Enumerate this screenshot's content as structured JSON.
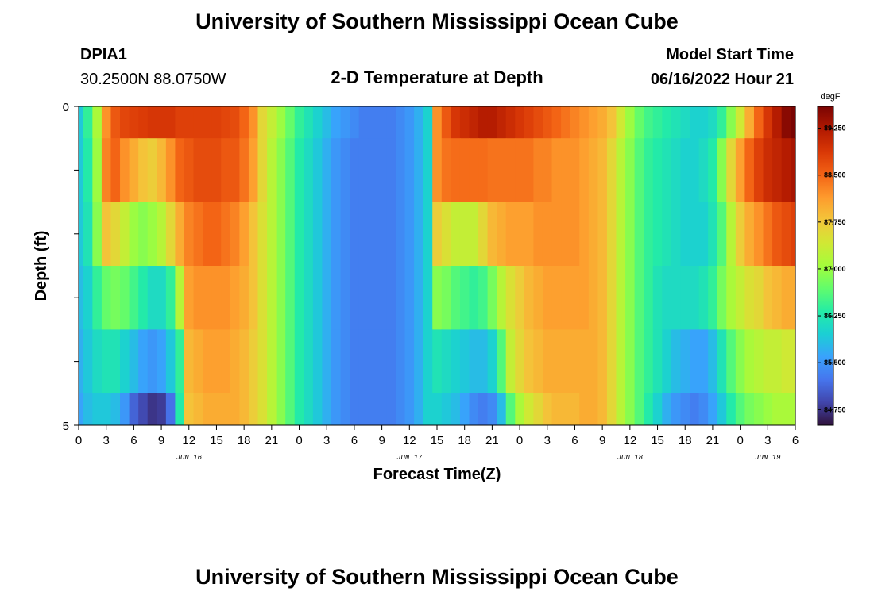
{
  "page": {
    "title": "University of Southern Mississippi Ocean Cube",
    "footer_title": "University of Southern Mississippi Ocean Cube",
    "station_id": "DPIA1",
    "coordinates": "30.2500N  88.0750W",
    "subtitle": "2-D Temperature at Depth",
    "model_start_label": "Model Start Time",
    "model_start_value": "06/16/2022 Hour 21"
  },
  "chart_data": {
    "type": "heatmap",
    "title": "2-D Temperature at Depth",
    "xlabel": "Forecast Time(Z)",
    "ylabel": "Depth (ft)",
    "x_tick_labels": [
      "0",
      "3",
      "6",
      "9",
      "12",
      "15",
      "18",
      "21",
      "0",
      "3",
      "6",
      "9",
      "12",
      "15",
      "18",
      "21",
      "0",
      "3",
      "6",
      "9",
      "12",
      "15",
      "18",
      "21",
      "0",
      "3",
      "6"
    ],
    "x_tick_hours": [
      0,
      3,
      6,
      9,
      12,
      15,
      18,
      21,
      24,
      27,
      30,
      33,
      36,
      39,
      42,
      45,
      48,
      51,
      54,
      57,
      60,
      63,
      66,
      69,
      72,
      75,
      78
    ],
    "xlim_hours": [
      0,
      78
    ],
    "day_labels": [
      {
        "label": "JUN 16",
        "hour": 12
      },
      {
        "label": "JUN 17",
        "hour": 36
      },
      {
        "label": "JUN 18",
        "hour": 60
      },
      {
        "label": "JUN 19",
        "hour": 75
      }
    ],
    "y_tick_labels": [
      "0",
      "5"
    ],
    "ylim": [
      0,
      5
    ],
    "depth_rows_ft": [
      0,
      1,
      2,
      3,
      4,
      5
    ],
    "colorbar": {
      "unit": "degF",
      "tick_labels": [
        "84.750",
        "85.500",
        "86.250",
        "87.000",
        "87.750",
        "88.500",
        "89.250"
      ],
      "range": [
        84.5,
        89.6
      ],
      "colors": [
        "#30123b",
        "#4145ab",
        "#4675ed",
        "#39a2fc",
        "#1bcfd4",
        "#24eca6",
        "#61fc6c",
        "#a4fc3b",
        "#d1e834",
        "#f3c63a",
        "#fe9b2d",
        "#f36315",
        "#d93806",
        "#b11901",
        "#7a0402"
      ]
    },
    "x_hours": [
      0,
      1,
      2,
      3,
      4,
      5,
      6,
      7,
      8,
      9,
      10,
      11,
      12,
      13,
      14,
      15,
      16,
      17,
      18,
      19,
      20,
      21,
      22,
      23,
      24,
      25,
      26,
      27,
      28,
      29,
      30,
      31,
      32,
      33,
      34,
      35,
      36,
      37,
      38,
      39,
      40,
      41,
      42,
      43,
      44,
      45,
      46,
      47,
      48,
      49,
      50,
      51,
      52,
      53,
      54,
      55,
      56,
      57,
      58,
      59,
      60,
      61,
      62,
      63,
      64,
      65,
      66,
      67,
      68,
      69,
      70,
      71,
      72,
      73,
      74,
      75,
      76,
      77,
      78
    ],
    "values": [
      [
        85.9,
        86.4,
        87.1,
        88.2,
        88.6,
        88.75,
        88.8,
        88.85,
        88.9,
        88.9,
        88.9,
        88.8,
        88.8,
        88.8,
        88.8,
        88.8,
        88.75,
        88.7,
        88.5,
        88.2,
        87.6,
        87.3,
        87.0,
        86.7,
        86.4,
        86.2,
        86.0,
        85.8,
        85.6,
        85.5,
        85.4,
        85.3,
        85.3,
        85.3,
        85.3,
        85.4,
        85.5,
        85.7,
        86.0,
        88.2,
        88.6,
        88.9,
        89.0,
        89.1,
        89.2,
        89.2,
        89.1,
        89.0,
        88.9,
        88.8,
        88.7,
        88.6,
        88.5,
        88.4,
        88.3,
        88.2,
        88.1,
        88.0,
        87.8,
        87.4,
        87.0,
        86.7,
        86.5,
        86.4,
        86.3,
        86.2,
        86.1,
        86.0,
        86.0,
        86.1,
        86.4,
        86.9,
        87.4,
        88.0,
        88.5,
        88.9,
        89.2,
        89.5,
        89.6
      ],
      [
        85.9,
        86.3,
        87.0,
        88.3,
        88.5,
        88.2,
        88.0,
        87.8,
        87.7,
        87.9,
        88.2,
        88.5,
        88.6,
        88.7,
        88.7,
        88.7,
        88.6,
        88.6,
        88.4,
        88.1,
        87.6,
        87.2,
        86.9,
        86.6,
        86.3,
        86.1,
        85.9,
        85.7,
        85.5,
        85.4,
        85.3,
        85.3,
        85.3,
        85.3,
        85.3,
        85.4,
        85.5,
        85.7,
        86.0,
        88.2,
        88.4,
        88.45,
        88.45,
        88.45,
        88.45,
        88.4,
        88.4,
        88.4,
        88.4,
        88.4,
        88.3,
        88.3,
        88.2,
        88.2,
        88.2,
        88.1,
        88.0,
        87.9,
        87.6,
        87.2,
        86.9,
        86.6,
        86.4,
        86.3,
        86.2,
        86.1,
        86.0,
        86.0,
        86.1,
        86.3,
        86.9,
        87.6,
        88.1,
        88.5,
        88.8,
        89.0,
        89.1,
        89.2,
        89.3
      ],
      [
        85.9,
        86.2,
        86.9,
        87.8,
        87.6,
        87.3,
        87.0,
        86.9,
        87.0,
        87.2,
        87.6,
        88.0,
        88.3,
        88.4,
        88.5,
        88.5,
        88.4,
        88.3,
        88.1,
        87.8,
        87.5,
        87.2,
        86.9,
        86.6,
        86.3,
        86.1,
        85.9,
        85.7,
        85.5,
        85.4,
        85.3,
        85.3,
        85.3,
        85.3,
        85.3,
        85.4,
        85.5,
        85.7,
        86.0,
        87.7,
        87.5,
        87.3,
        87.3,
        87.3,
        87.6,
        87.9,
        88.0,
        88.1,
        88.1,
        88.1,
        88.2,
        88.2,
        88.2,
        88.2,
        88.2,
        88.1,
        88.0,
        87.9,
        87.6,
        87.2,
        86.9,
        86.6,
        86.4,
        86.3,
        86.2,
        86.1,
        86.0,
        86.0,
        86.0,
        86.2,
        86.6,
        87.2,
        87.7,
        88.0,
        88.2,
        88.4,
        88.6,
        88.7,
        88.8
      ],
      [
        85.8,
        86.0,
        86.4,
        86.7,
        86.8,
        86.7,
        86.5,
        86.3,
        86.1,
        86.1,
        86.4,
        87.2,
        88.1,
        88.2,
        88.2,
        88.2,
        88.2,
        88.1,
        88.0,
        87.8,
        87.5,
        87.2,
        86.9,
        86.6,
        86.3,
        86.1,
        85.9,
        85.7,
        85.5,
        85.4,
        85.3,
        85.3,
        85.3,
        85.3,
        85.3,
        85.4,
        85.5,
        85.7,
        86.0,
        86.9,
        86.8,
        86.6,
        86.5,
        86.4,
        86.5,
        86.8,
        87.2,
        87.5,
        87.7,
        87.9,
        88.0,
        88.1,
        88.1,
        88.1,
        88.1,
        88.1,
        88.0,
        87.9,
        87.6,
        87.2,
        86.9,
        86.6,
        86.4,
        86.2,
        86.1,
        86.1,
        86.1,
        86.1,
        86.2,
        86.4,
        86.8,
        87.1,
        87.3,
        87.5,
        87.6,
        87.8,
        87.9,
        88.0,
        88.0
      ],
      [
        85.7,
        85.9,
        86.1,
        86.2,
        86.2,
        86.0,
        85.8,
        85.6,
        85.5,
        85.6,
        85.9,
        86.4,
        87.9,
        88.0,
        88.1,
        88.1,
        88.1,
        88.0,
        87.9,
        87.7,
        87.5,
        87.2,
        86.9,
        86.6,
        86.3,
        86.1,
        85.9,
        85.7,
        85.5,
        85.4,
        85.3,
        85.3,
        85.3,
        85.3,
        85.3,
        85.4,
        85.5,
        85.7,
        86.0,
        86.2,
        86.1,
        86.0,
        85.9,
        85.8,
        85.8,
        86.0,
        86.6,
        87.3,
        87.6,
        87.8,
        87.9,
        88.0,
        88.0,
        88.0,
        88.0,
        88.0,
        88.0,
        87.9,
        87.6,
        87.2,
        86.9,
        86.6,
        86.4,
        86.2,
        86.0,
        85.8,
        85.7,
        85.6,
        85.6,
        85.8,
        86.2,
        86.6,
        86.9,
        87.1,
        87.2,
        87.3,
        87.3,
        87.4,
        87.4
      ],
      [
        85.6,
        85.8,
        85.9,
        85.9,
        85.8,
        85.5,
        85.1,
        84.9,
        84.75,
        84.8,
        85.2,
        86.3,
        87.8,
        87.9,
        88.0,
        88.0,
        88.0,
        88.0,
        87.9,
        87.7,
        87.5,
        87.2,
        86.9,
        86.6,
        86.3,
        86.1,
        85.9,
        85.7,
        85.5,
        85.4,
        85.3,
        85.3,
        85.3,
        85.3,
        85.3,
        85.4,
        85.5,
        85.7,
        86.0,
        86.0,
        85.9,
        85.8,
        85.6,
        85.4,
        85.3,
        85.4,
        85.8,
        86.6,
        87.1,
        87.4,
        87.6,
        87.8,
        87.9,
        87.9,
        87.9,
        88.0,
        88.0,
        87.9,
        87.6,
        87.2,
        86.9,
        86.6,
        86.3,
        86.0,
        85.7,
        85.5,
        85.4,
        85.3,
        85.4,
        85.6,
        85.9,
        86.3,
        86.6,
        86.8,
        86.9,
        87.0,
        87.1,
        87.1,
        87.1
      ]
    ]
  }
}
